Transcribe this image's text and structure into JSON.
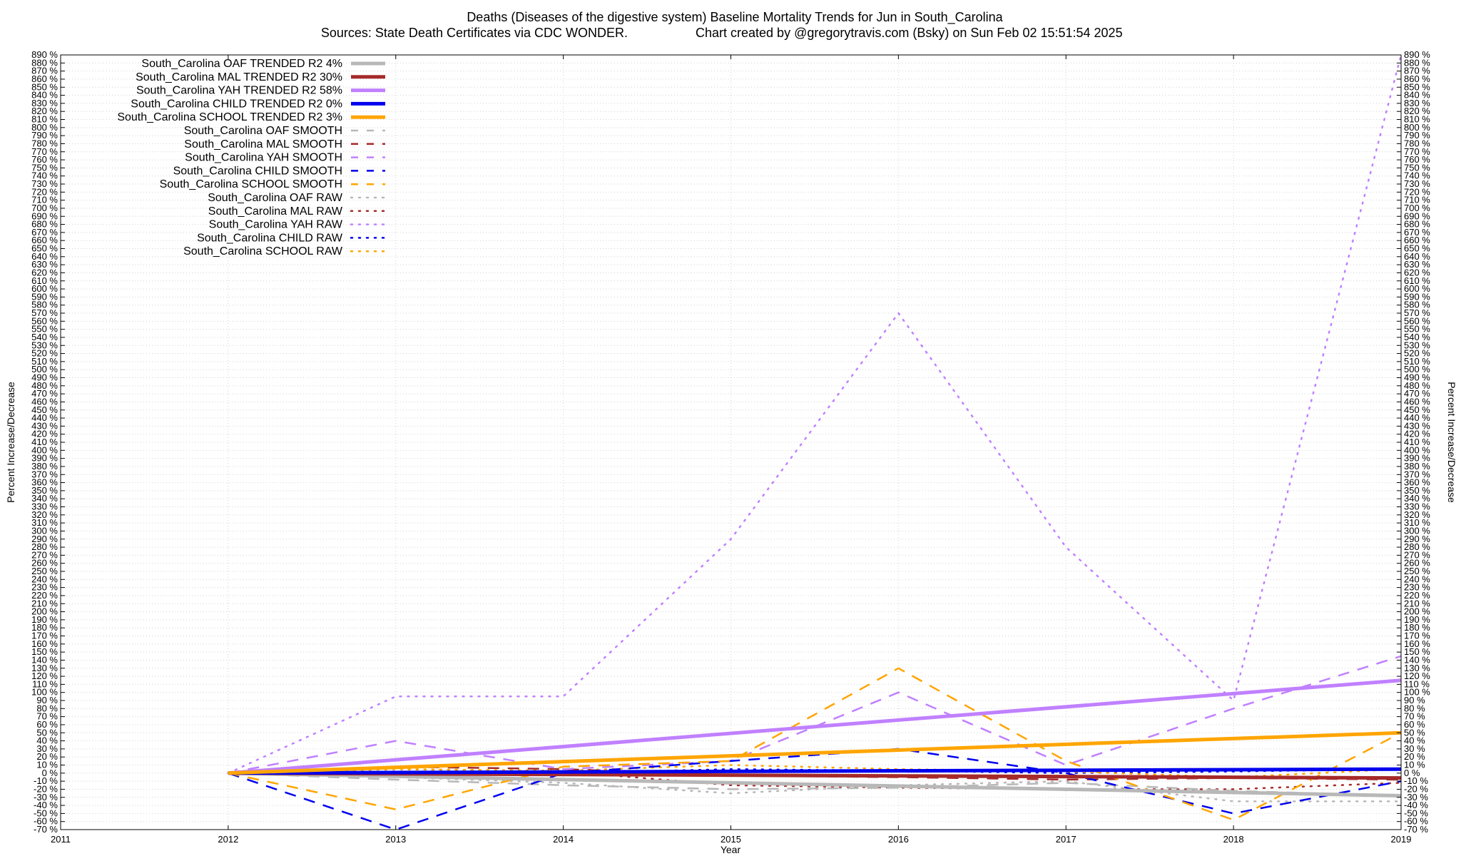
{
  "chart_data": {
    "type": "line",
    "title": "Deaths (Diseases of the digestive system)  Baseline Mortality Trends for Jun in South_Carolina",
    "subtitle_left": "Sources: State Death Certificates via CDC WONDER.",
    "subtitle_right": "Chart created by @gregorytravis.com (Bsky) on Sun Feb 02 15:51:54 2025",
    "xlabel": "Year",
    "ylabel_left": "Percent Increase/Decrease",
    "ylabel_right": "Percent Increase/Decrease",
    "xlim": [
      2011,
      2019
    ],
    "ylim": [
      -70,
      890
    ],
    "x_ticks": [
      2011,
      2012,
      2013,
      2014,
      2015,
      2016,
      2017,
      2018,
      2019
    ],
    "y_tick_step": 10,
    "y_tick_suffix": " %",
    "grid": true,
    "legend_position": "top-left",
    "series": [
      {
        "name": "South_Carolina OAF TRENDED R2   4%",
        "color": "#b8b8b8",
        "style": "solid",
        "width": 5,
        "x": [
          2012,
          2019
        ],
        "y": [
          0,
          -28
        ]
      },
      {
        "name": "South_Carolina MAL TRENDED R2  30%",
        "color": "#a52a2a",
        "style": "solid",
        "width": 5,
        "x": [
          2012,
          2019
        ],
        "y": [
          0,
          -6
        ]
      },
      {
        "name": "South_Carolina YAH TRENDED R2  58%",
        "color": "#c080ff",
        "style": "solid",
        "width": 5,
        "x": [
          2012,
          2019
        ],
        "y": [
          0,
          115
        ]
      },
      {
        "name": "South_Carolina CHILD TRENDED R2   0%",
        "color": "#0000ee",
        "style": "solid",
        "width": 5,
        "x": [
          2012,
          2019
        ],
        "y": [
          0,
          5
        ]
      },
      {
        "name": "South_Carolina SCHOOL TRENDED R2   3%",
        "color": "#ffa500",
        "style": "solid",
        "width": 5,
        "x": [
          2012,
          2019
        ],
        "y": [
          0,
          50
        ]
      },
      {
        "name": "South_Carolina OAF SMOOTH",
        "color": "#b8b8b8",
        "style": "dashed",
        "width": 2.5,
        "x": [
          2012,
          2013,
          2014,
          2015,
          2016,
          2017,
          2018,
          2019
        ],
        "y": [
          0,
          -8,
          -15,
          -20,
          -18,
          -12,
          -22,
          -28
        ]
      },
      {
        "name": "South_Carolina MAL SMOOTH",
        "color": "#a52a2a",
        "style": "dashed",
        "width": 2.5,
        "x": [
          2012,
          2013,
          2014,
          2015,
          2016,
          2017,
          2018,
          2019
        ],
        "y": [
          0,
          8,
          5,
          -3,
          -5,
          -8,
          -6,
          -8
        ]
      },
      {
        "name": "South_Carolina YAH SMOOTH",
        "color": "#c080ff",
        "style": "dashed",
        "width": 2.5,
        "x": [
          2012,
          2013,
          2014,
          2015,
          2016,
          2017,
          2018,
          2019
        ],
        "y": [
          0,
          40,
          5,
          15,
          100,
          10,
          80,
          145
        ]
      },
      {
        "name": "South_Carolina CHILD SMOOTH",
        "color": "#0000ee",
        "style": "dashed",
        "width": 2.5,
        "x": [
          2012,
          2013,
          2014,
          2015,
          2016,
          2017,
          2018,
          2019
        ],
        "y": [
          0,
          -70,
          0,
          15,
          30,
          0,
          -50,
          -10
        ]
      },
      {
        "name": "South_Carolina SCHOOL SMOOTH",
        "color": "#ffa500",
        "style": "dashed",
        "width": 2.5,
        "x": [
          2012,
          2013,
          2014,
          2015,
          2016,
          2017,
          2018,
          2019
        ],
        "y": [
          0,
          -45,
          8,
          15,
          130,
          15,
          -58,
          50
        ]
      },
      {
        "name": "South_Carolina OAF RAW",
        "color": "#b8b8b8",
        "style": "dotted",
        "width": 2.5,
        "x": [
          2012,
          2013,
          2014,
          2015,
          2016,
          2017,
          2018,
          2019
        ],
        "y": [
          0,
          -5,
          -12,
          -25,
          -15,
          -10,
          -35,
          -35
        ]
      },
      {
        "name": "South_Carolina MAL RAW",
        "color": "#a52a2a",
        "style": "dotted",
        "width": 2.5,
        "x": [
          2012,
          2013,
          2014,
          2015,
          2016,
          2017,
          2018,
          2019
        ],
        "y": [
          0,
          5,
          2,
          -15,
          -18,
          -20,
          -20,
          -12
        ]
      },
      {
        "name": "South_Carolina YAH RAW",
        "color": "#c080ff",
        "style": "dotted",
        "width": 2.5,
        "x": [
          2012,
          2013,
          2014,
          2015,
          2016,
          2017,
          2018,
          2019
        ],
        "y": [
          0,
          95,
          95,
          290,
          570,
          280,
          90,
          890
        ]
      },
      {
        "name": "South_Carolina CHILD RAW",
        "color": "#0000ee",
        "style": "dotted",
        "width": 2.5,
        "x": [
          2012,
          2013,
          2014,
          2015,
          2016,
          2017,
          2018,
          2019
        ],
        "y": [
          0,
          2,
          0,
          5,
          3,
          0,
          2,
          5
        ]
      },
      {
        "name": "South_Carolina SCHOOL RAW",
        "color": "#ffa500",
        "style": "dotted",
        "width": 2.5,
        "x": [
          2012,
          2013,
          2014,
          2015,
          2016,
          2017,
          2018,
          2019
        ],
        "y": [
          0,
          5,
          3,
          10,
          5,
          2,
          -5,
          5
        ]
      }
    ]
  }
}
